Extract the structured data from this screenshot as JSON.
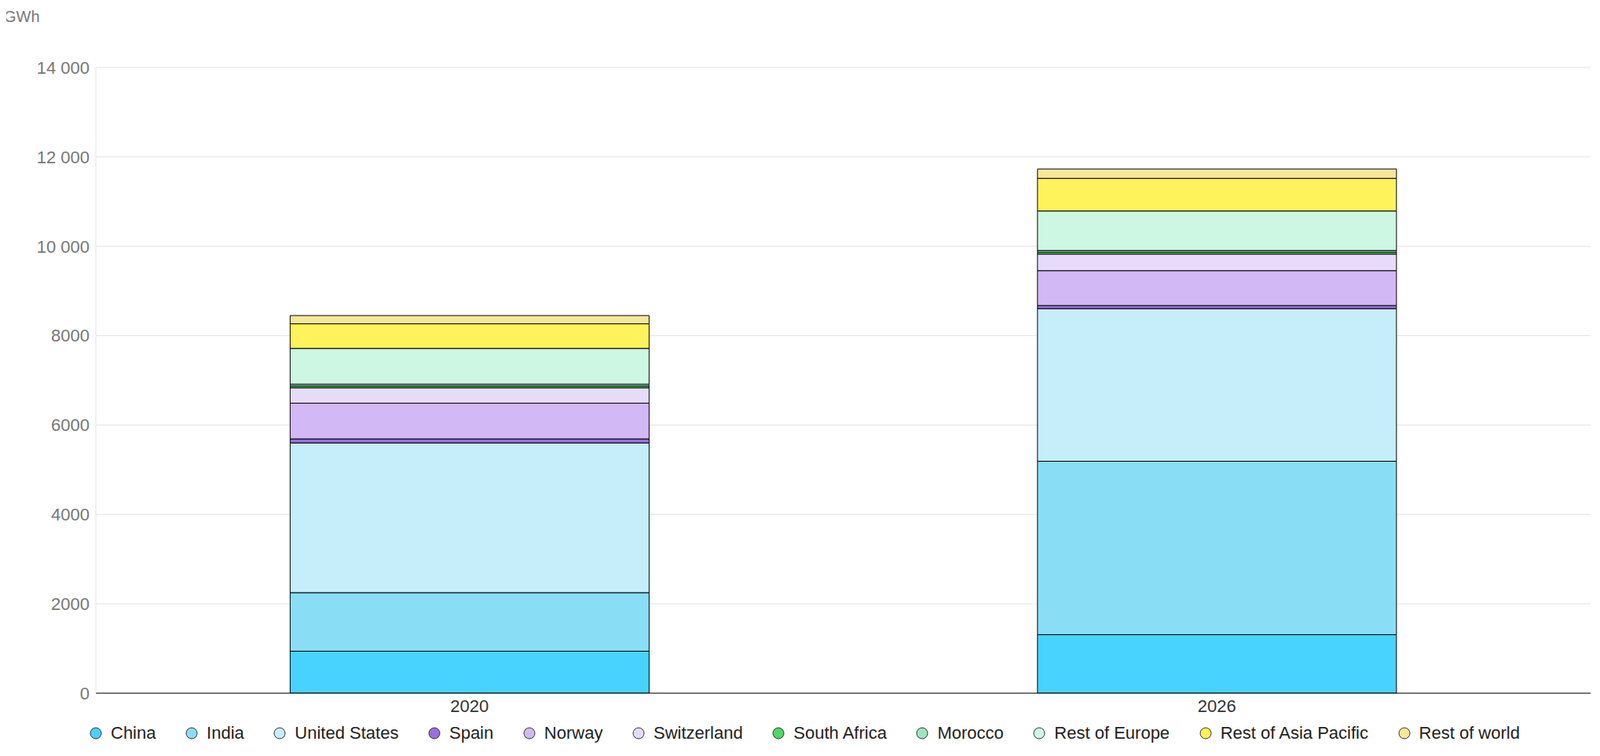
{
  "chart_data": {
    "type": "bar",
    "stacked": true,
    "y_label": "GWh",
    "categories": [
      "2020",
      "2026"
    ],
    "series": [
      {
        "name": "China",
        "color": "#47d3fe",
        "values": [
          940,
          1310
        ]
      },
      {
        "name": "India",
        "color": "#89def5",
        "values": [
          1310,
          3880
        ]
      },
      {
        "name": "United States",
        "color": "#c5eefa",
        "values": [
          3350,
          3415
        ]
      },
      {
        "name": "Spain",
        "color": "#9b6fe0",
        "values": [
          90,
          70
        ]
      },
      {
        "name": "Norway",
        "color": "#d2b8f5",
        "values": [
          800,
          780
        ]
      },
      {
        "name": "Switzerland",
        "color": "#e6dcfa",
        "values": [
          345,
          370
        ]
      },
      {
        "name": "South Africa",
        "color": "#4cd964",
        "values": [
          40,
          40
        ]
      },
      {
        "name": "Morocco",
        "color": "#9ee6c0",
        "values": [
          40,
          40
        ]
      },
      {
        "name": "Rest of Europe",
        "color": "#cdf7e2",
        "values": [
          800,
          885
        ]
      },
      {
        "name": "Rest of Asia Pacific",
        "color": "#fff35c",
        "values": [
          550,
          730
        ]
      },
      {
        "name": "Rest of world",
        "color": "#f7e79a",
        "values": [
          185,
          210
        ]
      }
    ],
    "ylim": [
      0,
      14000
    ],
    "yticks": [
      0,
      2000,
      4000,
      6000,
      8000,
      {
        "value": 10000,
        "label": "10 000"
      },
      {
        "value": 12000,
        "label": "12 000"
      },
      {
        "value": 14000,
        "label": "14 000"
      }
    ],
    "grid": true,
    "legend": "bottom"
  }
}
